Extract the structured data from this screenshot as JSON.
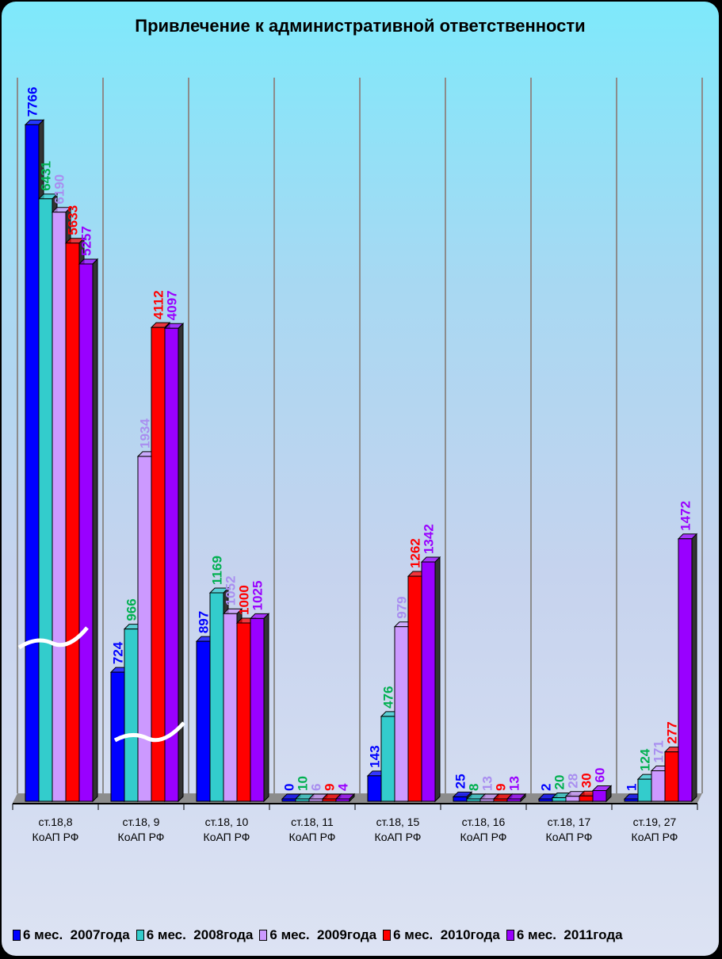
{
  "chart_data": {
    "type": "bar",
    "title": "Привлечение к административной ответственности",
    "categories": [
      [
        "ст.18,8",
        "КоАП РФ"
      ],
      [
        "ст.18, 9",
        "КоАП РФ"
      ],
      [
        "ст.18, 10",
        "КоАП РФ"
      ],
      [
        "ст.18, 11",
        "КоАП РФ"
      ],
      [
        "ст.18, 15",
        "КоАП РФ"
      ],
      [
        "ст.18, 16",
        "КоАП РФ"
      ],
      [
        "ст.18, 17",
        "КоАП РФ"
      ],
      [
        "ст.19, 27",
        "КоАП РФ"
      ]
    ],
    "series": [
      {
        "name": "6 мес.  2007года",
        "color": "#0000ff",
        "label_color": "#0000ff",
        "values": [
          7766,
          724,
          897,
          0,
          143,
          25,
          2,
          1
        ]
      },
      {
        "name": "6 мес.  2008года",
        "color": "#33cccc",
        "label_color": "#00b050",
        "values": [
          6431,
          966,
          1169,
          10,
          476,
          8,
          20,
          124
        ]
      },
      {
        "name": "6 мес.  2009года",
        "color": "#cc99ff",
        "label_color": "#a98ef0",
        "values": [
          6190,
          1934,
          1052,
          6,
          979,
          13,
          28,
          171
        ]
      },
      {
        "name": "6 мес.  2010года",
        "color": "#ff0000",
        "label_color": "#ff0000",
        "values": [
          5633,
          4112,
          1000,
          9,
          1262,
          9,
          30,
          277
        ]
      },
      {
        "name": "6 мес.  2011года",
        "color": "#9900ff",
        "label_color": "#9900ff",
        "values": [
          5257,
          4097,
          1025,
          4,
          1342,
          13,
          60,
          1472
        ]
      }
    ],
    "axis_break": true,
    "legend_position": "bottom"
  }
}
